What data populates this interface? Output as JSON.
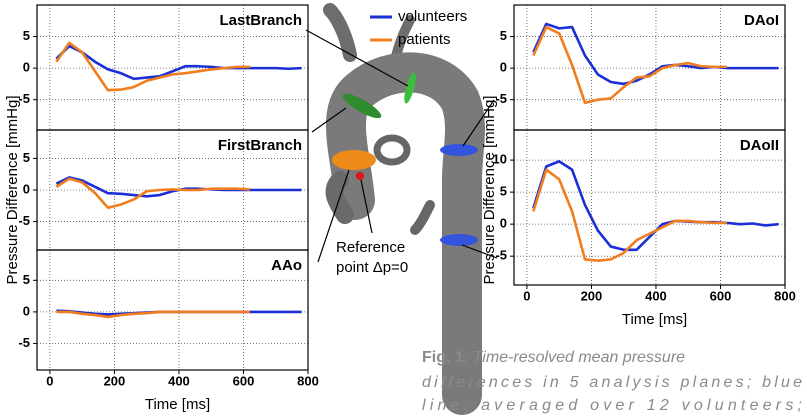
{
  "chart_data": [
    {
      "type": "line",
      "title": "LastBranch",
      "x": [
        20,
        60,
        100,
        140,
        180,
        220,
        260,
        300,
        340,
        380,
        420,
        460,
        500,
        540,
        580,
        620,
        660,
        700,
        740,
        780
      ],
      "series": [
        {
          "name": "volunteers",
          "color": "#1a2fd6",
          "values": [
            1.5,
            3.5,
            2.5,
            1,
            -0.2,
            -0.8,
            -1.7,
            -1.5,
            -1.3,
            -0.5,
            0.3,
            0.3,
            0.2,
            0,
            0,
            0,
            0,
            0,
            -0.1,
            0
          ]
        },
        {
          "name": "patients",
          "color": "#f07d1e",
          "values": [
            1,
            4,
            2.5,
            -0.5,
            -3.5,
            -3.4,
            -3,
            -2,
            -1.5,
            -1,
            -0.8,
            -0.5,
            -0.2,
            0,
            0.2,
            0.2,
            null,
            null,
            null,
            null
          ]
        }
      ],
      "xlim": [
        -40,
        800
      ],
      "ylim": [
        -9.8,
        10
      ],
      "yticks": [
        -5,
        0,
        5
      ],
      "grid": true
    },
    {
      "type": "line",
      "title": "FirstBranch",
      "ylabel": "Pressure Difference [mmHg]",
      "x": [
        20,
        60,
        100,
        140,
        180,
        220,
        260,
        300,
        340,
        380,
        420,
        460,
        500,
        540,
        580,
        620,
        660,
        700,
        740,
        780
      ],
      "series": [
        {
          "name": "volunteers",
          "color": "#1a2fd6",
          "values": [
            1,
            2,
            1.5,
            0.5,
            -0.5,
            -0.6,
            -0.8,
            -1,
            -0.8,
            -0.2,
            0.2,
            0.2,
            0.1,
            0,
            0,
            0,
            0,
            0,
            0,
            0
          ]
        },
        {
          "name": "patients",
          "color": "#f07d1e",
          "values": [
            0.5,
            1.8,
            1.2,
            -0.5,
            -2.8,
            -2.3,
            -1.5,
            -0.2,
            0,
            0.1,
            0,
            0,
            0.2,
            0.2,
            0.2,
            0.1,
            null,
            null,
            null,
            null
          ]
        }
      ],
      "xlim": [
        -40,
        800
      ],
      "ylim": [
        -9.5,
        9.5
      ],
      "yticks": [
        -5,
        0,
        5
      ],
      "grid": true
    },
    {
      "type": "line",
      "title": "AAo",
      "xlabel": "Time [ms]",
      "x": [
        20,
        60,
        100,
        140,
        180,
        220,
        260,
        300,
        340,
        380,
        420,
        460,
        500,
        540,
        580,
        620,
        660,
        700,
        740,
        780
      ],
      "series": [
        {
          "name": "volunteers",
          "color": "#1a2fd6",
          "values": [
            0.2,
            0.1,
            -0.1,
            -0.3,
            -0.4,
            -0.3,
            -0.2,
            -0.1,
            0,
            0,
            0,
            0,
            0,
            0,
            0,
            0,
            0,
            0,
            0,
            0
          ]
        },
        {
          "name": "patients",
          "color": "#f07d1e",
          "values": [
            0,
            0,
            -0.3,
            -0.5,
            -0.8,
            -0.5,
            -0.3,
            -0.2,
            0,
            0,
            0,
            0,
            0,
            0,
            0,
            0,
            null,
            null,
            null,
            null
          ]
        }
      ],
      "xlim": [
        -40,
        800
      ],
      "ylim": [
        -9.2,
        9.8
      ],
      "xticks": [
        0,
        200,
        400,
        600,
        800
      ],
      "yticks": [
        -5,
        0,
        5
      ],
      "grid": true
    },
    {
      "type": "line",
      "title": "DAoI",
      "x": [
        20,
        60,
        100,
        140,
        180,
        220,
        260,
        300,
        340,
        380,
        420,
        460,
        500,
        540,
        580,
        620,
        660,
        700,
        740,
        780
      ],
      "series": [
        {
          "name": "volunteers",
          "color": "#1a2fd6",
          "values": [
            2.5,
            7,
            6.3,
            6.5,
            2,
            -1,
            -2.2,
            -2.5,
            -2,
            -1,
            0.3,
            0.5,
            0.3,
            0,
            0.2,
            0,
            0,
            0,
            0,
            0
          ]
        },
        {
          "name": "patients",
          "color": "#f07d1e",
          "values": [
            2,
            6.5,
            5.5,
            0.5,
            -5.5,
            -5,
            -4.8,
            -3,
            -1.5,
            -1.3,
            0,
            0.5,
            0.8,
            0.3,
            0.2,
            0.2,
            null,
            null,
            null,
            null
          ]
        }
      ],
      "xlim": [
        -40,
        800
      ],
      "ylim": [
        -9.8,
        10
      ],
      "yticks": [
        -5,
        0,
        5
      ],
      "grid": true
    },
    {
      "type": "line",
      "title": "DAoII",
      "xlabel": "Time [ms]",
      "ylabel": "Pressure Difference [mmHg]",
      "x": [
        20,
        60,
        100,
        140,
        180,
        220,
        260,
        300,
        340,
        380,
        420,
        460,
        500,
        540,
        580,
        620,
        660,
        700,
        740,
        780
      ],
      "series": [
        {
          "name": "volunteers",
          "color": "#1a2fd6",
          "values": [
            2.5,
            9,
            9.8,
            8.5,
            3,
            -1,
            -3.5,
            -4,
            -4,
            -2,
            0,
            0.5,
            0.4,
            0.3,
            0.3,
            0.2,
            0,
            0.1,
            -0.2,
            0
          ]
        },
        {
          "name": "patients",
          "color": "#f07d1e",
          "values": [
            2,
            8.5,
            7,
            2,
            -5.5,
            -5.7,
            -5.5,
            -4.5,
            -2.5,
            -1.5,
            -0.5,
            0.5,
            0.5,
            0.3,
            0.2,
            0.2,
            null,
            null,
            null,
            null
          ]
        }
      ],
      "xlim": [
        -40,
        800
      ],
      "ylim": [
        -9.5,
        14.7
      ],
      "xticks": [
        0,
        200,
        400,
        600,
        800
      ],
      "yticks": [
        -5,
        0,
        5,
        10
      ],
      "grid": true
    }
  ],
  "annotations": {
    "reference": [
      "Reference",
      "point Δp=0"
    ]
  },
  "caption": {
    "label": "Fig. 1",
    "lines": [
      ": Time-resolved mean pressure",
      "differences in 5 analysis planes; blue",
      "line: averaged over 12 volunteers;"
    ]
  }
}
